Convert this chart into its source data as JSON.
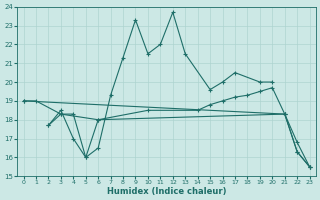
{
  "xlabel": "Humidex (Indice chaleur)",
  "xlim": [
    -0.5,
    23.5
  ],
  "ylim": [
    15,
    24
  ],
  "yticks": [
    15,
    16,
    17,
    18,
    19,
    20,
    21,
    22,
    23,
    24
  ],
  "xticks": [
    0,
    1,
    2,
    3,
    4,
    5,
    6,
    7,
    8,
    9,
    10,
    11,
    12,
    13,
    14,
    15,
    16,
    17,
    18,
    19,
    20,
    21,
    22,
    23
  ],
  "bg_color": "#cce8e5",
  "grid_color": "#aed4d0",
  "line_color": "#1e6e68",
  "lines": [
    {
      "x": [
        0,
        1,
        3,
        4,
        5,
        6,
        7,
        8,
        9,
        10,
        11,
        12,
        13,
        15,
        16,
        17,
        19,
        20
      ],
      "y": [
        19,
        19,
        18.3,
        18.3,
        16.0,
        16.5,
        19.3,
        21.3,
        23.3,
        21.5,
        22.0,
        23.7,
        21.5,
        19.6,
        20.0,
        20.5,
        20.0,
        20.0
      ]
    },
    {
      "x": [
        0,
        21,
        22,
        23
      ],
      "y": [
        19,
        18.3,
        16.8,
        15.5
      ]
    },
    {
      "x": [
        2,
        3,
        4,
        5,
        6,
        21,
        22,
        23
      ],
      "y": [
        17.7,
        18.5,
        17.0,
        16.0,
        18.0,
        18.3,
        16.3,
        15.5
      ]
    },
    {
      "x": [
        2,
        3,
        6,
        10,
        14,
        15,
        16,
        17,
        18,
        19,
        20,
        21,
        22,
        23
      ],
      "y": [
        17.7,
        18.3,
        18.0,
        18.5,
        18.5,
        18.8,
        19.0,
        19.2,
        19.3,
        19.5,
        19.7,
        18.3,
        16.3,
        15.5
      ]
    }
  ]
}
